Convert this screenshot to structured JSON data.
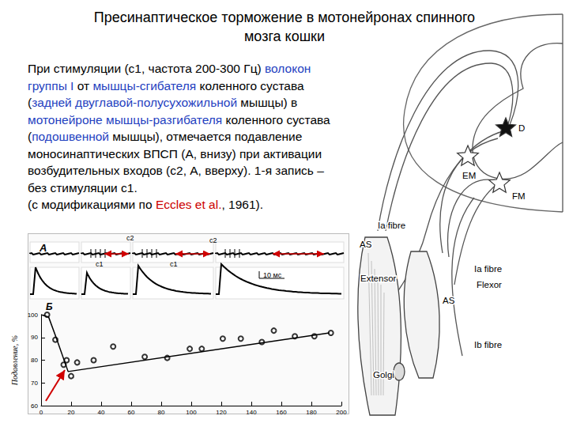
{
  "title": [
    "Пресинаптическое торможение в мотонейронах спинного",
    "мозга кошки"
  ],
  "paragraph": [
    [
      {
        "text": "При стимуляции (c1, частота 200-300 Гц) "
      },
      {
        "text": "волокон",
        "color": "#1f3fbf"
      }
    ],
    [
      {
        "text": "группы I",
        "color": "#1f3fbf"
      },
      {
        "text": " от "
      },
      {
        "text": "мышцы-сгибателя",
        "color": "#1f3fbf"
      },
      {
        "text": " коленного сустава"
      }
    ],
    [
      {
        "text": "("
      },
      {
        "text": "задней двуглавой-полусухожильной",
        "color": "#1f3fbf"
      },
      {
        "text": " мышцы) в"
      }
    ],
    [
      {
        "text": "мотонейроне мышцы-разгибателя",
        "color": "#1f3fbf"
      },
      {
        "text": " коленного сустава"
      }
    ],
    [
      {
        "text": "("
      },
      {
        "text": "подошвенной",
        "color": "#1f3fbf"
      },
      {
        "text": " мышцы), отмечается подавление"
      }
    ],
    [
      {
        "text": "моносинаптических ВПСП (А, внизу) при активации"
      }
    ],
    [
      {
        "text": "возбудительных входов (c2, А, вверху). 1-я запись –"
      }
    ],
    [
      {
        "text": "без стимуляции c1."
      }
    ],
    [
      {
        "text": "(с модификациями по "
      },
      {
        "text": "Eccles et al.",
        "color": "#cc0000"
      },
      {
        "text": ", 1961)."
      }
    ]
  ],
  "panel_a": {
    "label": "A",
    "texts": [
      "c2",
      "c2",
      "c1",
      "c1",
      "10 мс"
    ]
  },
  "chart_data": {
    "type": "scatter",
    "label": "Б",
    "y_label": "Подавление, %",
    "xlim": [
      0,
      200
    ],
    "xticks": [
      0,
      20,
      40,
      60,
      80,
      100,
      120,
      140,
      160,
      180,
      200
    ],
    "ylim": [
      60,
      100
    ],
    "yticks": [
      60,
      70,
      80,
      90,
      100
    ],
    "grid": false,
    "series": [
      {
        "type": "scatter",
        "marker": "emptyCircle",
        "color": "#000000",
        "x": [
          4,
          9.5,
          15,
          17,
          20,
          24,
          35,
          48,
          69,
          84,
          99,
          107,
          121,
          133,
          147,
          155,
          169,
          182,
          193
        ],
        "values": [
          100,
          89,
          78,
          80,
          73,
          79,
          80,
          86,
          81.5,
          81,
          85,
          85,
          89.5,
          89.5,
          88,
          93,
          90.5,
          90.5,
          92
        ]
      },
      {
        "type": "line",
        "line_style": "solid",
        "color": "#000000",
        "x": [
          0,
          5,
          10,
          18,
          192
        ],
        "values": [
          100,
          99,
          90,
          75,
          92
        ]
      }
    ]
  },
  "diagram": {
    "nodes": [
      {
        "label": "D"
      },
      {
        "label": "EM"
      },
      {
        "label": "FM"
      },
      {
        "label": "Ia fibre"
      },
      {
        "label": "AS"
      },
      {
        "label": "Extensor"
      },
      {
        "label": "Ia fibre"
      },
      {
        "label": "Flexor"
      },
      {
        "label": "AS"
      },
      {
        "label": "Ib fibre"
      },
      {
        "label": "Golgi"
      }
    ]
  }
}
